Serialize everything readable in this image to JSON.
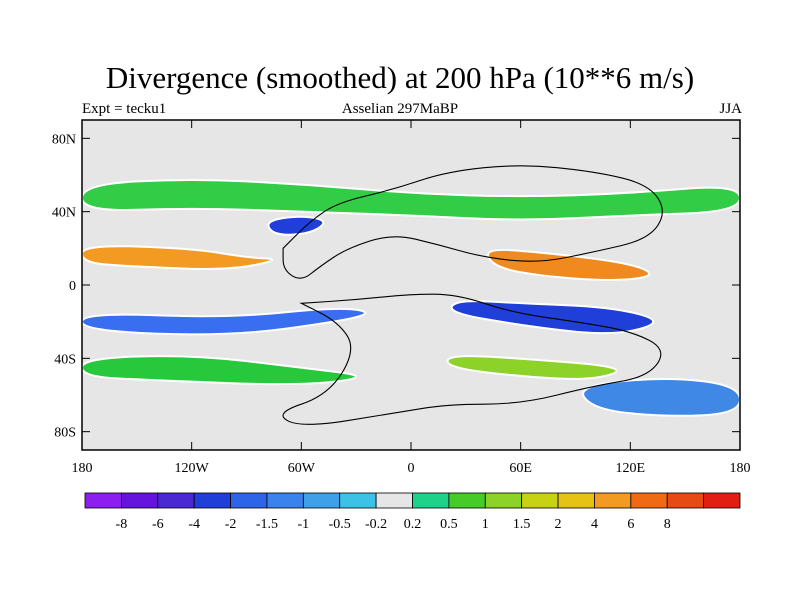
{
  "title": "Divergence (smoothed) at 200 hPa (10**6 m/s)",
  "subtitle_left": "Expt = tecku1",
  "subtitle_center": "Asselian 297MaBP",
  "subtitle_right": "JJA",
  "map": {
    "projection": "cylindrical equidistant",
    "lon_range": [
      -180,
      180
    ],
    "lat_range": [
      -90,
      90
    ],
    "background_color": "#e6e6e6",
    "lat_ticks": [
      {
        "value": 80,
        "label": "80N"
      },
      {
        "value": 40,
        "label": "40N"
      },
      {
        "value": 0,
        "label": "0"
      },
      {
        "value": -40,
        "label": "40S"
      },
      {
        "value": -80,
        "label": "80S"
      }
    ],
    "lon_ticks": [
      {
        "value": -180,
        "label": "180"
      },
      {
        "value": -120,
        "label": "120W"
      },
      {
        "value": -60,
        "label": "60W"
      },
      {
        "value": 0,
        "label": "0"
      },
      {
        "value": 60,
        "label": "60E"
      },
      {
        "value": 120,
        "label": "120E"
      },
      {
        "value": 180,
        "label": "180"
      }
    ],
    "features": [
      {
        "name": "tropical-convergence-band-west",
        "color": "#3a6ef0",
        "points": [
          [
            -180,
            -25
          ],
          [
            -100,
            -28
          ],
          [
            -40,
            -20
          ],
          [
            -20,
            -15
          ],
          [
            -40,
            -12
          ],
          [
            -100,
            -18
          ],
          [
            -180,
            -15
          ]
        ]
      },
      {
        "name": "tropical-convergence-band-east",
        "color": "#1f3fd8",
        "points": [
          [
            20,
            -15
          ],
          [
            60,
            -22
          ],
          [
            110,
            -28
          ],
          [
            140,
            -20
          ],
          [
            110,
            -12
          ],
          [
            60,
            -10
          ],
          [
            25,
            -8
          ]
        ]
      },
      {
        "name": "equatorial-divergence-east",
        "color": "#f08a1e",
        "points": [
          [
            40,
            20
          ],
          [
            70,
            18
          ],
          [
            120,
            12
          ],
          [
            135,
            5
          ],
          [
            110,
            2
          ],
          [
            70,
            5
          ],
          [
            45,
            10
          ]
        ]
      },
      {
        "name": "equatorial-divergence-west",
        "color": "#f29a22",
        "points": [
          [
            -180,
            22
          ],
          [
            -120,
            20
          ],
          [
            -90,
            15
          ],
          [
            -70,
            14
          ],
          [
            -100,
            8
          ],
          [
            -150,
            10
          ],
          [
            -180,
            12
          ]
        ]
      },
      {
        "name": "midlat-divergence-south",
        "color": "#28c83c",
        "points": [
          [
            -180,
            -40
          ],
          [
            -120,
            -38
          ],
          [
            -60,
            -45
          ],
          [
            -20,
            -50
          ],
          [
            -60,
            -55
          ],
          [
            -140,
            -52
          ],
          [
            -180,
            -50
          ]
        ]
      },
      {
        "name": "southern-divergence-east",
        "color": "#8cd228",
        "points": [
          [
            20,
            -38
          ],
          [
            60,
            -40
          ],
          [
            120,
            -45
          ],
          [
            100,
            -52
          ],
          [
            60,
            -50
          ],
          [
            20,
            -45
          ]
        ]
      },
      {
        "name": "north-divergence-band",
        "color": "#32cc46",
        "points": [
          [
            -180,
            55
          ],
          [
            -120,
            58
          ],
          [
            -60,
            55
          ],
          [
            0,
            50
          ],
          [
            60,
            48
          ],
          [
            120,
            50
          ],
          [
            180,
            55
          ],
          [
            180,
            40
          ],
          [
            120,
            38
          ],
          [
            60,
            35
          ],
          [
            0,
            38
          ],
          [
            -60,
            40
          ],
          [
            -120,
            42
          ],
          [
            -180,
            40
          ]
        ]
      },
      {
        "name": "north-convergence-pacific",
        "color": "#1f3fd8",
        "points": [
          [
            -80,
            35
          ],
          [
            -60,
            38
          ],
          [
            -45,
            35
          ],
          [
            -55,
            28
          ],
          [
            -75,
            27
          ]
        ]
      },
      {
        "name": "southern-high-latitude-blue",
        "color": "#3f88e6",
        "points": [
          [
            90,
            -55
          ],
          [
            140,
            -50
          ],
          [
            180,
            -55
          ],
          [
            180,
            -70
          ],
          [
            140,
            -72
          ],
          [
            100,
            -68
          ]
        ]
      }
    ],
    "coastlines": [
      {
        "name": "coastline-north-continent",
        "points": [
          [
            -70,
            20
          ],
          [
            -55,
            35
          ],
          [
            -40,
            45
          ],
          [
            -10,
            52
          ],
          [
            20,
            62
          ],
          [
            60,
            66
          ],
          [
            100,
            62
          ],
          [
            130,
            55
          ],
          [
            140,
            40
          ],
          [
            130,
            25
          ],
          [
            100,
            18
          ],
          [
            70,
            12
          ],
          [
            40,
            15
          ],
          [
            15,
            22
          ],
          [
            -10,
            28
          ],
          [
            -35,
            20
          ],
          [
            -50,
            10
          ],
          [
            -60,
            2
          ],
          [
            -70,
            8
          ],
          [
            -70,
            20
          ]
        ]
      },
      {
        "name": "coastline-south-continent",
        "points": [
          [
            -60,
            -10
          ],
          [
            -40,
            -20
          ],
          [
            -30,
            -35
          ],
          [
            -45,
            -60
          ],
          [
            -75,
            -70
          ],
          [
            -60,
            -78
          ],
          [
            -10,
            -70
          ],
          [
            20,
            -65
          ],
          [
            60,
            -65
          ],
          [
            100,
            -55
          ],
          [
            130,
            -50
          ],
          [
            140,
            -35
          ],
          [
            120,
            -25
          ],
          [
            90,
            -20
          ],
          [
            55,
            -15
          ],
          [
            25,
            -5
          ],
          [
            0,
            -5
          ],
          [
            -30,
            -8
          ],
          [
            -60,
            -10
          ]
        ]
      }
    ]
  },
  "colorbar": {
    "colors": [
      "#8c1ef0",
      "#6414dc",
      "#4a28d2",
      "#1f3fd8",
      "#2e64e8",
      "#3a82ec",
      "#3fa0ea",
      "#3cc2e6",
      "#e6e6e6",
      "#1ed28c",
      "#46cc28",
      "#8cd228",
      "#c8d214",
      "#e6c214",
      "#f29a22",
      "#f06a14",
      "#e84a14",
      "#e21e14"
    ],
    "labels": [
      "-8",
      "-6",
      "-4",
      "-2",
      "-1.5",
      "-1",
      "-0.5",
      "-0.2",
      "0.2",
      "0.5",
      "1",
      "1.5",
      "2",
      "4",
      "6",
      "8"
    ]
  }
}
